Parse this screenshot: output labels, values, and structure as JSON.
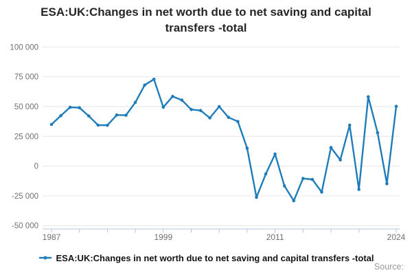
{
  "title": "ESA:UK:Changes in net worth due to net saving and capital transfers -total",
  "legend": {
    "label": "ESA:UK:Changes in net worth due to net saving and capital transfers -total"
  },
  "source_label": "Source:",
  "colors": {
    "line": "#1e7cba",
    "marker": "#1e7cba",
    "grid": "#e6e6e6",
    "axis": "#b5c4d8",
    "axis_text": "#707070",
    "title_text": "#262626",
    "legend_text": "#141414",
    "source_text": "#9a9a9a"
  },
  "chart_data": {
    "type": "line",
    "title": "ESA:UK:Changes in net worth due to net saving and capital transfers -total",
    "xlabel": "",
    "ylabel": "",
    "grid": true,
    "legend_position": "bottom",
    "ylim": [
      -50000,
      100000
    ],
    "yticks": [
      {
        "value": 100000,
        "label": "100 000"
      },
      {
        "value": 75000,
        "label": "75 000"
      },
      {
        "value": 50000,
        "label": "50 000"
      },
      {
        "value": 25000,
        "label": "25 000"
      },
      {
        "value": 0,
        "label": "0"
      },
      {
        "value": -25000,
        "label": "-25 000"
      },
      {
        "value": -50000,
        "label": "-50 000"
      }
    ],
    "xticks_labeled": [
      {
        "year": 1987,
        "label": "1987"
      },
      {
        "year": 1999,
        "label": "1999"
      },
      {
        "year": 2011,
        "label": "2011"
      },
      {
        "year": 2024,
        "label": "2024"
      }
    ],
    "xticks_minor_years": [
      1987,
      1990,
      1993,
      1996,
      1999,
      2002,
      2005,
      2008,
      2011,
      2014,
      2017,
      2020,
      2024
    ],
    "x": [
      1987,
      1988,
      1989,
      1990,
      1991,
      1992,
      1993,
      1994,
      1995,
      1996,
      1997,
      1998,
      1999,
      2000,
      2001,
      2002,
      2003,
      2004,
      2005,
      2006,
      2007,
      2008,
      2009,
      2010,
      2011,
      2012,
      2013,
      2014,
      2015,
      2016,
      2017,
      2018,
      2019,
      2020,
      2021,
      2022,
      2023,
      2024
    ],
    "values": [
      35000,
      42300,
      49400,
      49000,
      42100,
      34400,
      34300,
      42900,
      42700,
      53500,
      68100,
      72900,
      49500,
      58500,
      55400,
      47500,
      46700,
      40500,
      50000,
      40900,
      37500,
      15000,
      -26200,
      -6600,
      10100,
      -16600,
      -29100,
      -10400,
      -11200,
      -21800,
      15600,
      5200,
      34400,
      -19600,
      58200,
      28000,
      -14800,
      50200
    ]
  }
}
